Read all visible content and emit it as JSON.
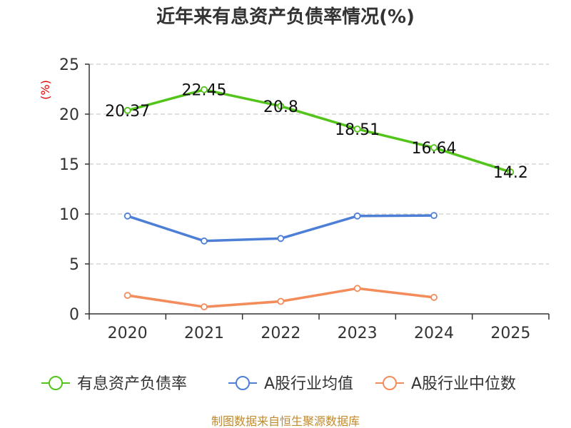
{
  "chart_data": {
    "type": "line",
    "title": "近年来有息资产负债率情况(%)",
    "ylabel": "(%)",
    "xlabel": "",
    "categories": [
      "2020",
      "2021",
      "2022",
      "2023",
      "2024",
      "2025"
    ],
    "ylim": [
      0,
      25
    ],
    "yticks": [
      0,
      5,
      10,
      15,
      20,
      25
    ],
    "grid": true,
    "legend_position": "bottom",
    "series": [
      {
        "name": "有息资产负债率",
        "color": "#52c41a",
        "values": [
          20.37,
          22.45,
          20.8,
          18.51,
          16.64,
          14.2
        ],
        "labels": [
          "20.37",
          "22.45",
          "20.8",
          "18.51",
          "16.64",
          "14.2"
        ]
      },
      {
        "name": "A股行业均值",
        "color": "#4e7fd6",
        "values": [
          9.8,
          7.3,
          7.55,
          9.8,
          9.85,
          null
        ]
      },
      {
        "name": "A股行业中位数",
        "color": "#f38b5a",
        "values": [
          1.85,
          0.7,
          1.25,
          2.55,
          1.65,
          null
        ]
      }
    ]
  },
  "colors": {
    "unit_label": "#e00000",
    "footer": "#c08a2c",
    "axis": "#333333",
    "grid": "#cccccc"
  },
  "footer": "制图数据来自恒生聚源数据库"
}
